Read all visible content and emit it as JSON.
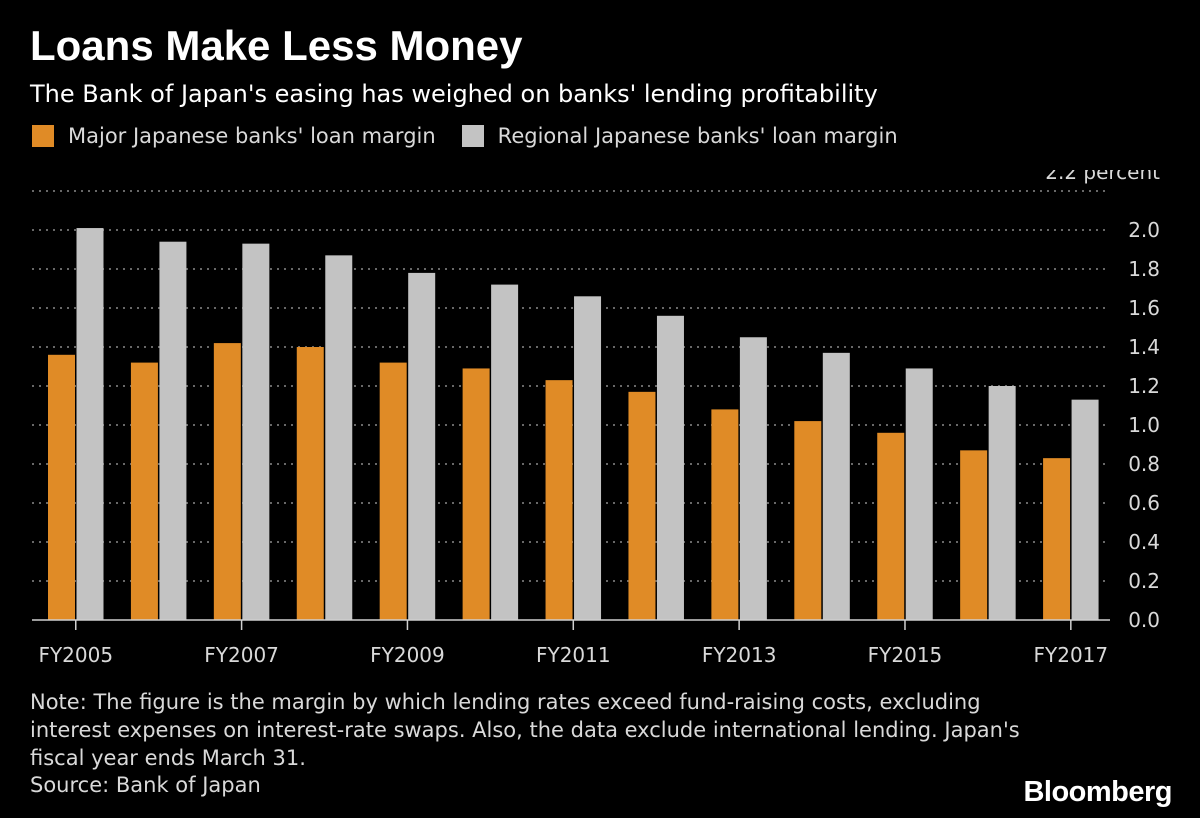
{
  "header": {
    "title": "Loans Make Less Money",
    "subtitle": "The Bank of Japan's easing has weighed on banks' lending profitability"
  },
  "colors": {
    "background": "#000000",
    "major": "#E08B26",
    "regional": "#C3C3C3",
    "gridline": "#8a8a8a"
  },
  "chart_data": {
    "type": "bar",
    "categories": [
      "FY2005",
      "FY2006",
      "FY2007",
      "FY2008",
      "FY2009",
      "FY2010",
      "FY2011",
      "FY2012",
      "FY2013",
      "FY2014",
      "FY2015",
      "FY2016",
      "FY2017"
    ],
    "x_tick_labels": [
      "FY2005",
      "",
      "FY2007",
      "",
      "FY2009",
      "",
      "FY2011",
      "",
      "FY2013",
      "",
      "FY2015",
      "",
      "FY2017"
    ],
    "series": [
      {
        "name": "Major Japanese banks' loan margin",
        "values": [
          1.36,
          1.32,
          1.42,
          1.4,
          1.32,
          1.29,
          1.23,
          1.17,
          1.08,
          1.02,
          0.96,
          0.87,
          0.83
        ]
      },
      {
        "name": "Regional Japanese banks' loan margin",
        "values": [
          2.01,
          1.94,
          1.93,
          1.87,
          1.78,
          1.72,
          1.66,
          1.56,
          1.45,
          1.37,
          1.29,
          1.2,
          1.13
        ]
      }
    ],
    "y_ticks": [
      "0.0",
      "0.2",
      "0.4",
      "0.6",
      "0.8",
      "1.0",
      "1.2",
      "1.4",
      "1.6",
      "1.8",
      "2.0"
    ],
    "y_top_label": "2.2 percent",
    "ylim": [
      0,
      2.2
    ],
    "grid": true,
    "legend_position": "top-left",
    "y_axis_side": "right"
  },
  "footer": {
    "note": "Note: The figure is the margin by which lending rates exceed fund-raising costs, excluding interest expenses on interest-rate swaps. Also, the data exclude international lending. Japan's fiscal year ends March 31.",
    "source": "Source: Bank of Japan",
    "brand": "Bloomberg"
  }
}
